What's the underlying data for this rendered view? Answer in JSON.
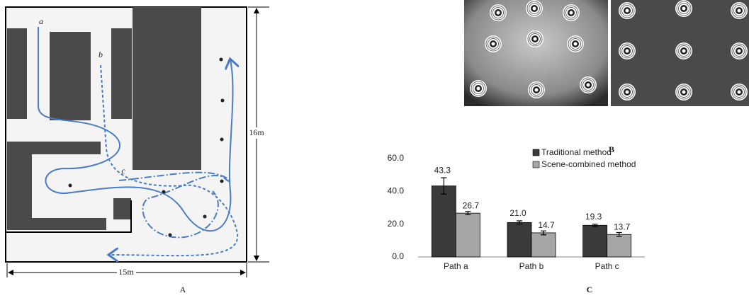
{
  "panel_a": {
    "label": "A",
    "path_labels": [
      "a",
      "b",
      "c"
    ],
    "height_label": "16m",
    "width_label": "15m"
  },
  "panel_b": {
    "label": "B"
  },
  "panel_c": {
    "label": "C"
  },
  "chart_data": {
    "type": "bar",
    "categories": [
      "Path a",
      "Path b",
      "Path c"
    ],
    "series": [
      {
        "name": "Traditional method",
        "color": "#3a3a3a",
        "values": [
          43.3,
          21.0,
          19.3
        ],
        "value_labels": [
          "43.3",
          "21.0",
          "19.3"
        ],
        "errors": [
          5,
          1,
          0.7
        ]
      },
      {
        "name": "Scene-combined method",
        "color": "#a6a6a6",
        "values": [
          26.7,
          14.7,
          13.7
        ],
        "value_labels": [
          "26.7",
          "14.7",
          "13.7"
        ],
        "errors": [
          1,
          1.2,
          1.2
        ]
      }
    ],
    "ylim": [
      0,
      60
    ],
    "yticks": [
      {
        "value": 0,
        "label": "0.0"
      },
      {
        "value": 20,
        "label": "20.0"
      },
      {
        "value": 40,
        "label": "40.0"
      },
      {
        "value": 60,
        "label": "60.0"
      }
    ],
    "grid": false,
    "legend": "top-right"
  }
}
